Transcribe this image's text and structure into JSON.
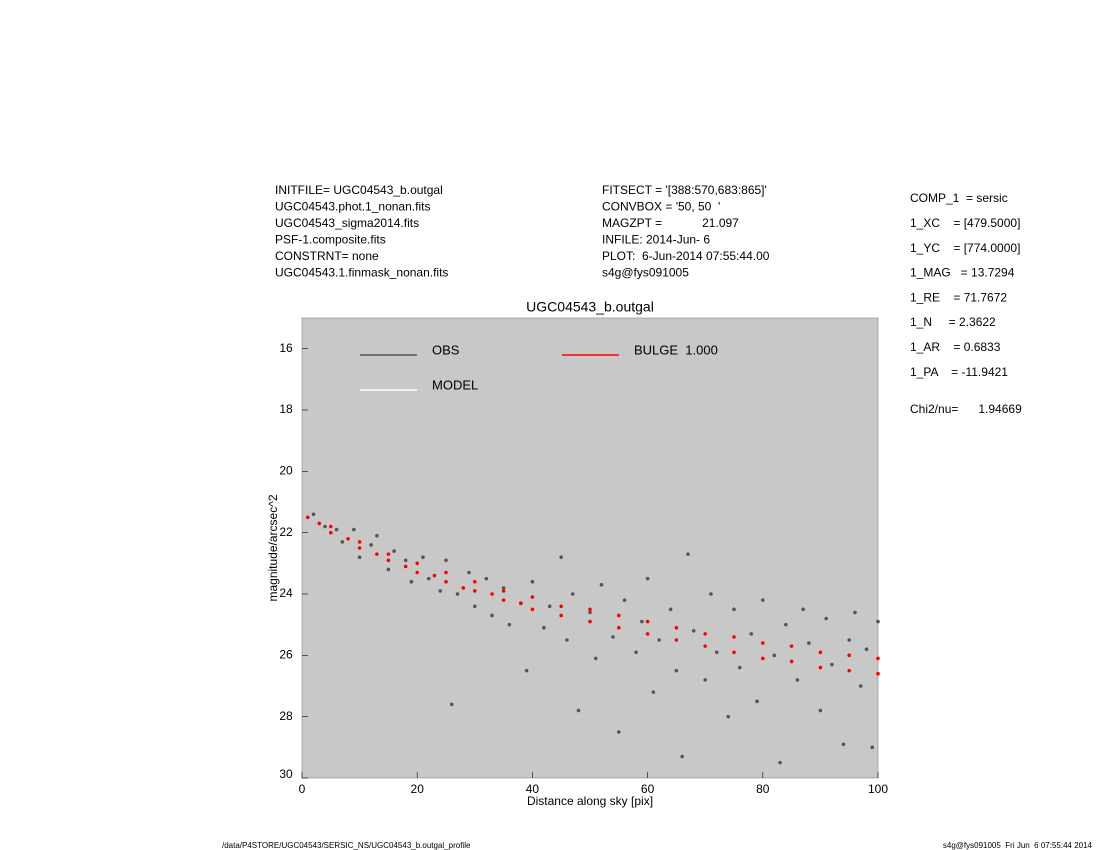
{
  "header": {
    "left": [
      "INITFILE= UGC04543_b.outgal",
      "UGC04543.phot.1_nonan.fits",
      "UGC04543_sigma2014.fits",
      "PSF-1.composite.fits",
      "CONSTRNT= none",
      "UGC04543.1.finmask_nonan.fits"
    ],
    "middle": [
      "FITSECT = '[388:570,683:865]'",
      "CONVBOX = '50, 50  '",
      "MAGZPT =            21.097",
      "INFILE: 2014-Jun- 6",
      "PLOT:  6-Jun-2014 07:55:44.00",
      "s4g@fys091005"
    ],
    "right": [
      "COMP_1  = sersic",
      "1_XC    = [479.5000]",
      "1_YC    = [774.0000]",
      "1_MAG   = 13.7294",
      "1_RE    = 71.7672",
      "1_N     = 2.3622",
      "1_AR    = 0.6833",
      "1_PA    = -11.9421",
      "Chi2/nu=      1.94669"
    ]
  },
  "chart_data": {
    "type": "scatter",
    "title": "UGC04543_b.outgal",
    "x_label": "Distance along sky [pix]",
    "y_label": "magnitude/arcsec^2",
    "xlim": [
      0,
      100
    ],
    "xticks": [
      0,
      20,
      40,
      60,
      80,
      100
    ],
    "ylim": [
      30,
      15
    ],
    "yticks": [
      16,
      18,
      20,
      22,
      24,
      26,
      28,
      30
    ],
    "background": "#c8c8c8",
    "series": [
      {
        "name": "OBS",
        "color": "#555555",
        "x": [
          2,
          4,
          6,
          7,
          9,
          10,
          12,
          13,
          15,
          16,
          18,
          19,
          21,
          22,
          24,
          25,
          26,
          27,
          29,
          30,
          32,
          33,
          35,
          36,
          38,
          39,
          40,
          42,
          43,
          45,
          46,
          47,
          48,
          50,
          51,
          52,
          54,
          55,
          56,
          58,
          59,
          60,
          61,
          62,
          64,
          65,
          66,
          67,
          68,
          70,
          71,
          72,
          74,
          75,
          76,
          78,
          79,
          80,
          82,
          83,
          84,
          86,
          87,
          88,
          90,
          91,
          92,
          94,
          95,
          96,
          97,
          98,
          99,
          100
        ],
        "values": [
          21.4,
          21.8,
          21.9,
          22.3,
          21.9,
          22.8,
          22.4,
          22.1,
          23.2,
          22.6,
          22.9,
          23.6,
          22.8,
          23.5,
          23.9,
          22.9,
          27.6,
          24.0,
          23.3,
          24.4,
          23.5,
          24.7,
          23.8,
          25.0,
          24.3,
          26.5,
          23.6,
          25.1,
          24.4,
          22.8,
          25.5,
          24.0,
          27.8,
          24.6,
          26.1,
          23.7,
          25.4,
          28.5,
          24.2,
          25.9,
          24.9,
          23.5,
          27.2,
          25.5,
          24.5,
          26.5,
          29.3,
          22.7,
          25.2,
          26.8,
          24.0,
          25.9,
          28.0,
          24.5,
          26.4,
          25.3,
          27.5,
          24.2,
          26.0,
          29.5,
          25.0,
          26.8,
          24.5,
          25.6,
          27.8,
          24.8,
          26.3,
          28.9,
          25.5,
          24.6,
          27.0,
          25.8,
          29.0,
          24.9
        ]
      },
      {
        "name": "MODEL",
        "color": "#ffffff",
        "x": [],
        "values": []
      },
      {
        "name": "BULGE  1.000",
        "color": "#ff0000",
        "x": [
          1,
          3,
          5,
          5,
          8,
          10,
          10,
          13,
          15,
          15,
          18,
          20,
          20,
          23,
          25,
          25,
          28,
          30,
          30,
          33,
          35,
          35,
          38,
          40,
          40,
          45,
          45,
          50,
          50,
          55,
          55,
          60,
          60,
          65,
          65,
          70,
          70,
          75,
          75,
          80,
          80,
          85,
          85,
          90,
          90,
          95,
          95,
          100,
          100
        ],
        "values": [
          21.5,
          21.7,
          22.0,
          21.8,
          22.2,
          22.5,
          22.3,
          22.7,
          22.9,
          22.7,
          23.1,
          23.3,
          23.0,
          23.4,
          23.6,
          23.3,
          23.8,
          23.9,
          23.6,
          24.0,
          24.2,
          23.9,
          24.3,
          24.5,
          24.1,
          24.7,
          24.4,
          24.9,
          24.5,
          25.1,
          24.7,
          25.3,
          24.9,
          25.5,
          25.1,
          25.7,
          25.3,
          25.9,
          25.4,
          26.1,
          25.6,
          26.2,
          25.7,
          26.4,
          25.9,
          26.5,
          26.0,
          26.6,
          26.1
        ]
      }
    ]
  },
  "footer": {
    "left": "/data/P4STORE/UGC04543/SERSIC_NS/UGC04543_b.outgal_profile",
    "right": "s4g@fys091005  Fri Jun  6 07:55:44 2014"
  }
}
